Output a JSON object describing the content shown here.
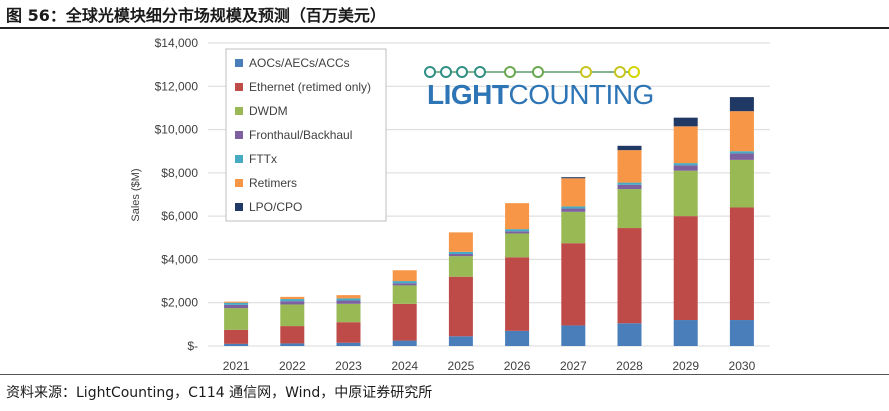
{
  "header": {
    "title": "图 56：全球光模块细分市场规模及预测（百万美元）"
  },
  "footer": {
    "source": "资料来源：LightCounting，C114 通信网，Wind，中原证券研究所"
  },
  "logo": {
    "text_light": "LIGHT",
    "text_counting": "COUNTING",
    "color_light": "#2e75b6",
    "color_counting": "#2e75b6",
    "dots_colors": [
      "#2f8f83",
      "#2f8f83",
      "#2f8f83",
      "#2f8f83",
      "#6aa84f",
      "#6aa84f",
      "#c5c520",
      "#c5c520",
      "#d4d400"
    ]
  },
  "chart_data": {
    "type": "bar",
    "stacked": true,
    "title": "",
    "xlabel": "",
    "ylabel": "Sales ($M)",
    "ylim": [
      0,
      14000
    ],
    "yticks": [
      0,
      2000,
      4000,
      6000,
      8000,
      10000,
      12000,
      14000
    ],
    "ytick_labels": [
      "$-",
      "$2,000",
      "$4,000",
      "$6,000",
      "$8,000",
      "$10,000",
      "$12,000",
      "$14,000"
    ],
    "grid": true,
    "legend_position": "top-left",
    "categories": [
      "2021",
      "2022",
      "2023",
      "2024",
      "2025",
      "2026",
      "2027",
      "2028",
      "2029",
      "2030"
    ],
    "series": [
      {
        "name": "AOCs/AECs/ACCs",
        "color": "#4a7ebb",
        "values": [
          100,
          120,
          150,
          250,
          450,
          700,
          950,
          1050,
          1200,
          1200
        ]
      },
      {
        "name": "Ethernet (retimed only)",
        "color": "#be4b48",
        "values": [
          650,
          800,
          950,
          1700,
          2750,
          3400,
          3800,
          4400,
          4800,
          5200
        ]
      },
      {
        "name": "DWDM",
        "color": "#98b954",
        "values": [
          1000,
          1000,
          850,
          850,
          950,
          1100,
          1450,
          1800,
          2100,
          2200
        ]
      },
      {
        "name": "Fronthaul/Backhaul",
        "color": "#7d60a0",
        "values": [
          150,
          150,
          150,
          100,
          100,
          100,
          150,
          200,
          250,
          300
        ]
      },
      {
        "name": "FTTx",
        "color": "#46aac5",
        "values": [
          100,
          100,
          100,
          100,
          100,
          100,
          100,
          100,
          100,
          100
        ]
      },
      {
        "name": "Retimers",
        "color": "#f79646",
        "values": [
          50,
          100,
          150,
          500,
          900,
          1200,
          1300,
          1500,
          1700,
          1850
        ]
      },
      {
        "name": "LPO/CPO",
        "color": "#1f3864",
        "values": [
          0,
          0,
          0,
          0,
          0,
          0,
          50,
          200,
          400,
          650
        ]
      }
    ]
  }
}
